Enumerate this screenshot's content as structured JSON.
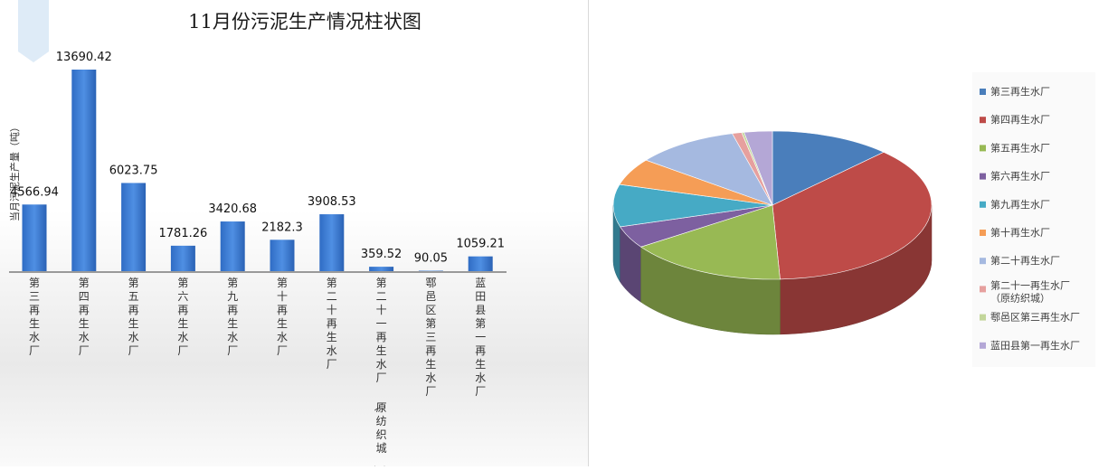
{
  "chart_data": [
    {
      "type": "bar",
      "title": "11月份污泥生产情况柱状图",
      "ylabel": "当月污泥生产量（吨）",
      "categories": [
        "第三再生水厂",
        "第四再生水厂",
        "第五再生水厂",
        "第六再生水厂",
        "第九再生水厂",
        "第十再生水厂",
        "第二十再生水厂",
        "第二十一再生水厂（原纺织城）",
        "鄠邑区第三再生水厂",
        "蓝田县第一再生水厂"
      ],
      "values": [
        4566.94,
        13690.42,
        6023.75,
        1781.26,
        3420.68,
        2182.3,
        3908.53,
        359.52,
        90.05,
        1059.21
      ],
      "value_labels": [
        "4566.94",
        "13690.42",
        "6023.75",
        "1781.26",
        "3420.68",
        "2182.3",
        "3908.53",
        "359.52",
        "90.05",
        "1059.21"
      ],
      "ylim": [
        0,
        13690.42
      ],
      "grid": false,
      "color": "#3a7bd5"
    },
    {
      "type": "pie",
      "categories": [
        "第三再生水厂",
        "第四再生水厂",
        "第五再生水厂",
        "第六再生水厂",
        "第九再生水厂",
        "第十再生水厂",
        "第二十再生水厂",
        "第二十一再生水厂（原纺织城）",
        "鄠邑区第三再生水厂",
        "蓝田县第一再生水厂"
      ],
      "values": [
        4566.94,
        13690.42,
        6023.75,
        1781.26,
        3420.68,
        2182.3,
        3908.53,
        359.52,
        90.05,
        1059.21
      ],
      "colors": [
        "#4a7ebb",
        "#be4b48",
        "#98b954",
        "#7d60a0",
        "#46aac5",
        "#f59d56",
        "#a5b9e0",
        "#e6a09e",
        "#c3d69b",
        "#b4a7d6"
      ],
      "legend_position": "right"
    }
  ]
}
